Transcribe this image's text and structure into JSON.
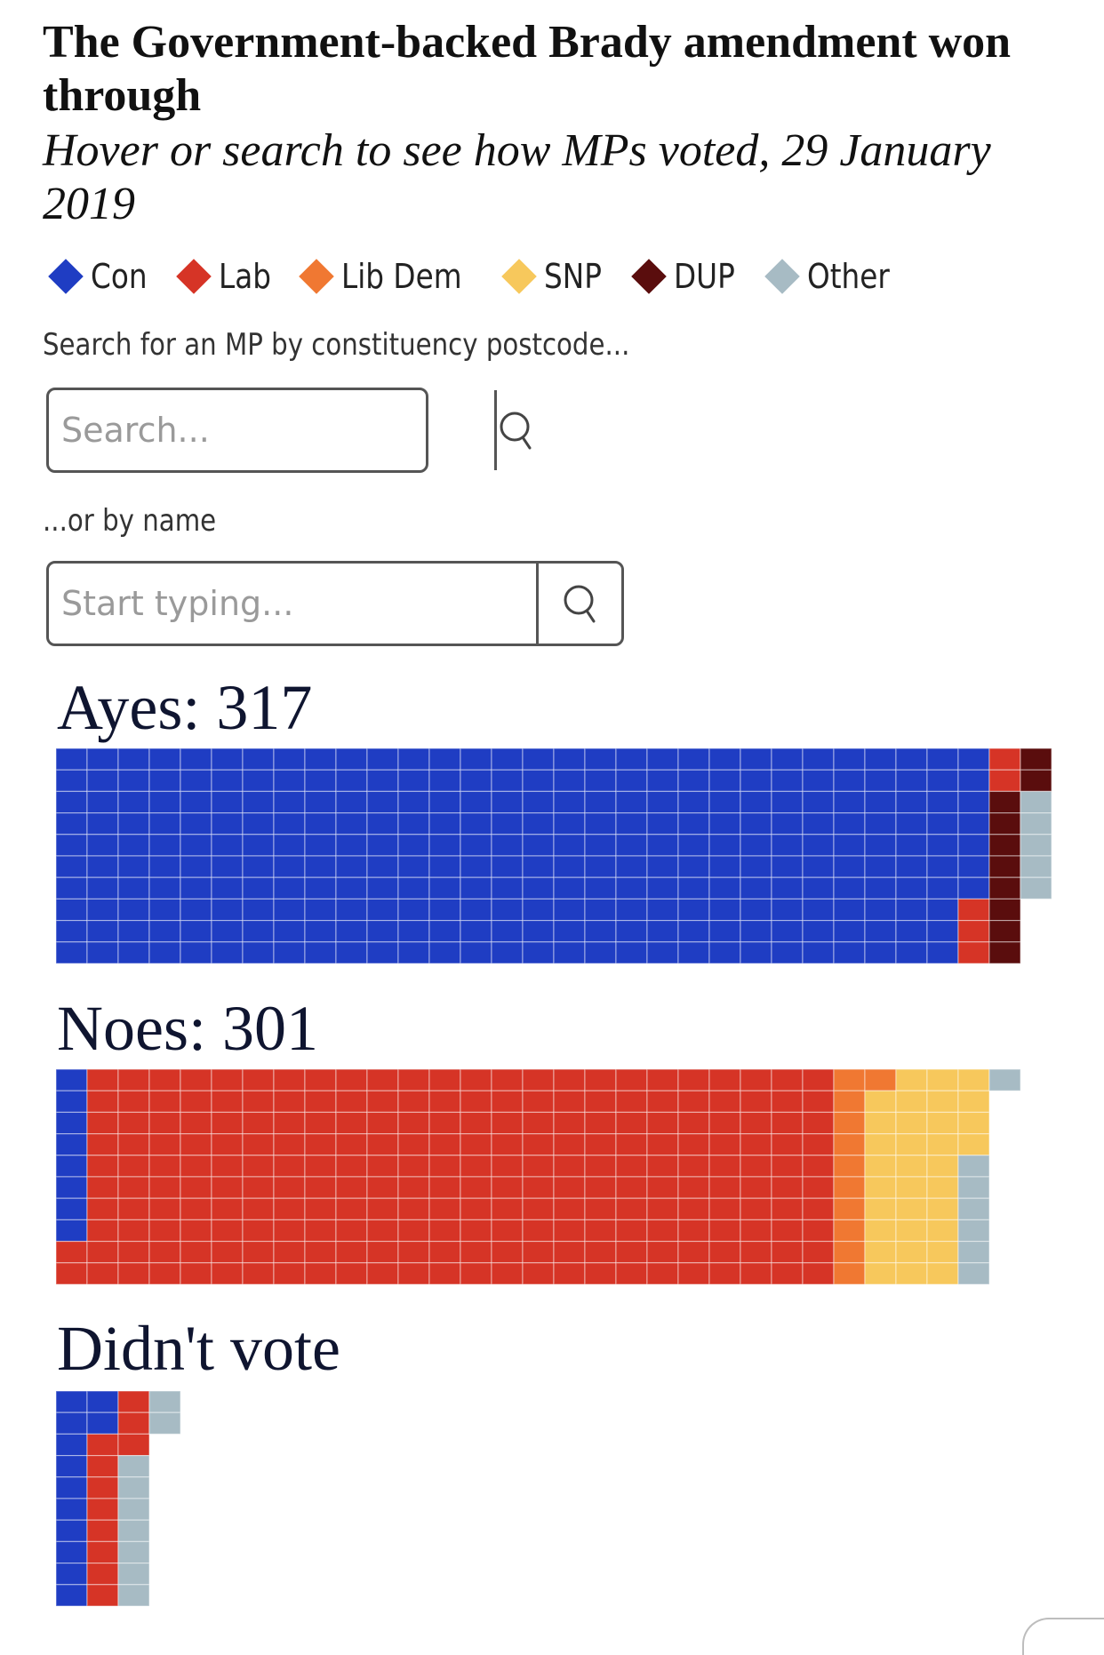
{
  "title": "The Government-backed Brady amendment won through",
  "subtitle": "Hover or search to see how MPs voted, 29 January 2019",
  "colors": {
    "Con": "#1f3dc3",
    "Lab": "#d63426",
    "Lib Dem": "#f07832",
    "SNP": "#f7c85c",
    "DUP": "#5a0d0d",
    "Other": "#a7bbc4"
  },
  "legend": [
    {
      "label": "Con",
      "color": "#1f3dc3"
    },
    {
      "label": "Lab",
      "color": "#d63426"
    },
    {
      "label": "Lib Dem",
      "color": "#f07832"
    },
    {
      "label": "SNP",
      "color": "#f7c85c"
    },
    {
      "label": "DUP",
      "color": "#5a0d0d"
    },
    {
      "label": "Other",
      "color": "#a7bbc4"
    }
  ],
  "search": {
    "postcode_label": "Search for an MP by constituency postcode...",
    "postcode_placeholder": "Search...",
    "name_label": "...or by name",
    "name_placeholder": "Start typing...",
    "button_icon": "search-icon"
  },
  "chart_data": {
    "type": "waffle",
    "unit": "MP",
    "rows_per_column": 10,
    "groups": [
      {
        "label": "Ayes: 317",
        "total": 317,
        "segments": [
          {
            "party": "Con",
            "count": 297
          },
          {
            "party": "Lab",
            "count": 5
          },
          {
            "party": "DUP",
            "count": 10
          },
          {
            "party": "Other",
            "count": 5
          }
        ]
      },
      {
        "label": "Noes: 301",
        "total": 301,
        "segments": [
          {
            "party": "Con",
            "count": 8
          },
          {
            "party": "Lab",
            "count": 242
          },
          {
            "party": "Lib Dem",
            "count": 11
          },
          {
            "party": "SNP",
            "count": 33
          },
          {
            "party": "Other",
            "count": 7
          }
        ]
      },
      {
        "label": "Didn't vote",
        "total": 32,
        "segments": [
          {
            "party": "Con",
            "count": 12
          },
          {
            "party": "Lab",
            "count": 11
          },
          {
            "party": "Other",
            "count": 9
          }
        ]
      }
    ]
  }
}
